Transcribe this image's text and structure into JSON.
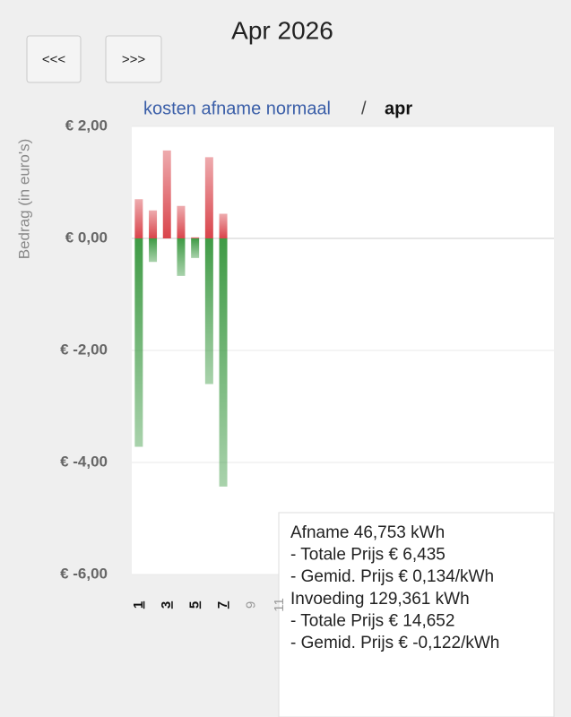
{
  "header": {
    "title": "Apr 2026",
    "prev_button": "<<<",
    "next_button": ">>>"
  },
  "breadcrumb": {
    "link": "kosten afname normaal",
    "separator": "/",
    "current": "apr"
  },
  "chart_data": {
    "type": "bar",
    "y_label": "Bedrag (in euro's)",
    "categories": [
      "1",
      null,
      "3",
      null,
      "5",
      null,
      "7",
      null,
      "9",
      null,
      "11",
      null,
      null,
      null,
      null,
      null,
      null,
      null,
      null,
      null,
      null,
      null,
      null,
      null,
      null,
      null,
      null,
      null,
      null,
      null
    ],
    "series": [
      {
        "color": "#d9444b",
        "values": [
          0.7,
          0.5,
          1.57,
          0.58,
          0.02,
          1.45,
          0.44,
          null,
          null,
          null,
          null,
          null,
          null,
          null,
          null,
          null,
          null,
          null,
          null,
          null,
          null,
          null,
          null,
          null,
          null,
          null,
          null,
          null,
          null,
          null
        ]
      },
      {
        "color": "#3f9b45",
        "values": [
          -3.72,
          -0.42,
          0,
          -0.67,
          -0.35,
          -2.6,
          -4.43,
          null,
          null,
          null,
          null,
          null,
          null,
          null,
          null,
          null,
          null,
          null,
          null,
          null,
          null,
          null,
          null,
          null,
          null,
          null,
          null,
          null,
          null,
          null
        ]
      }
    ],
    "ylim": [
      -6,
      2
    ],
    "yticks": [
      {
        "value": -6,
        "label": "€ -6,00"
      },
      {
        "value": -4,
        "label": "€ -4,00"
      },
      {
        "value": -2,
        "label": "€ -2,00"
      },
      {
        "value": 0,
        "label": "€ 0,00"
      },
      {
        "value": 2,
        "label": "€ 2,00"
      }
    ],
    "grid": true
  },
  "tooltip": {
    "lines": [
      "Afname 46,753 kWh",
      "- Totale Prijs € 6,435",
      "- Gemid. Prijs € 0,134/kWh",
      "Invoeding 129,361 kWh",
      "- Totale Prijs € 14,652",
      "- Gemid. Prijs € -0,122/kWh"
    ]
  }
}
